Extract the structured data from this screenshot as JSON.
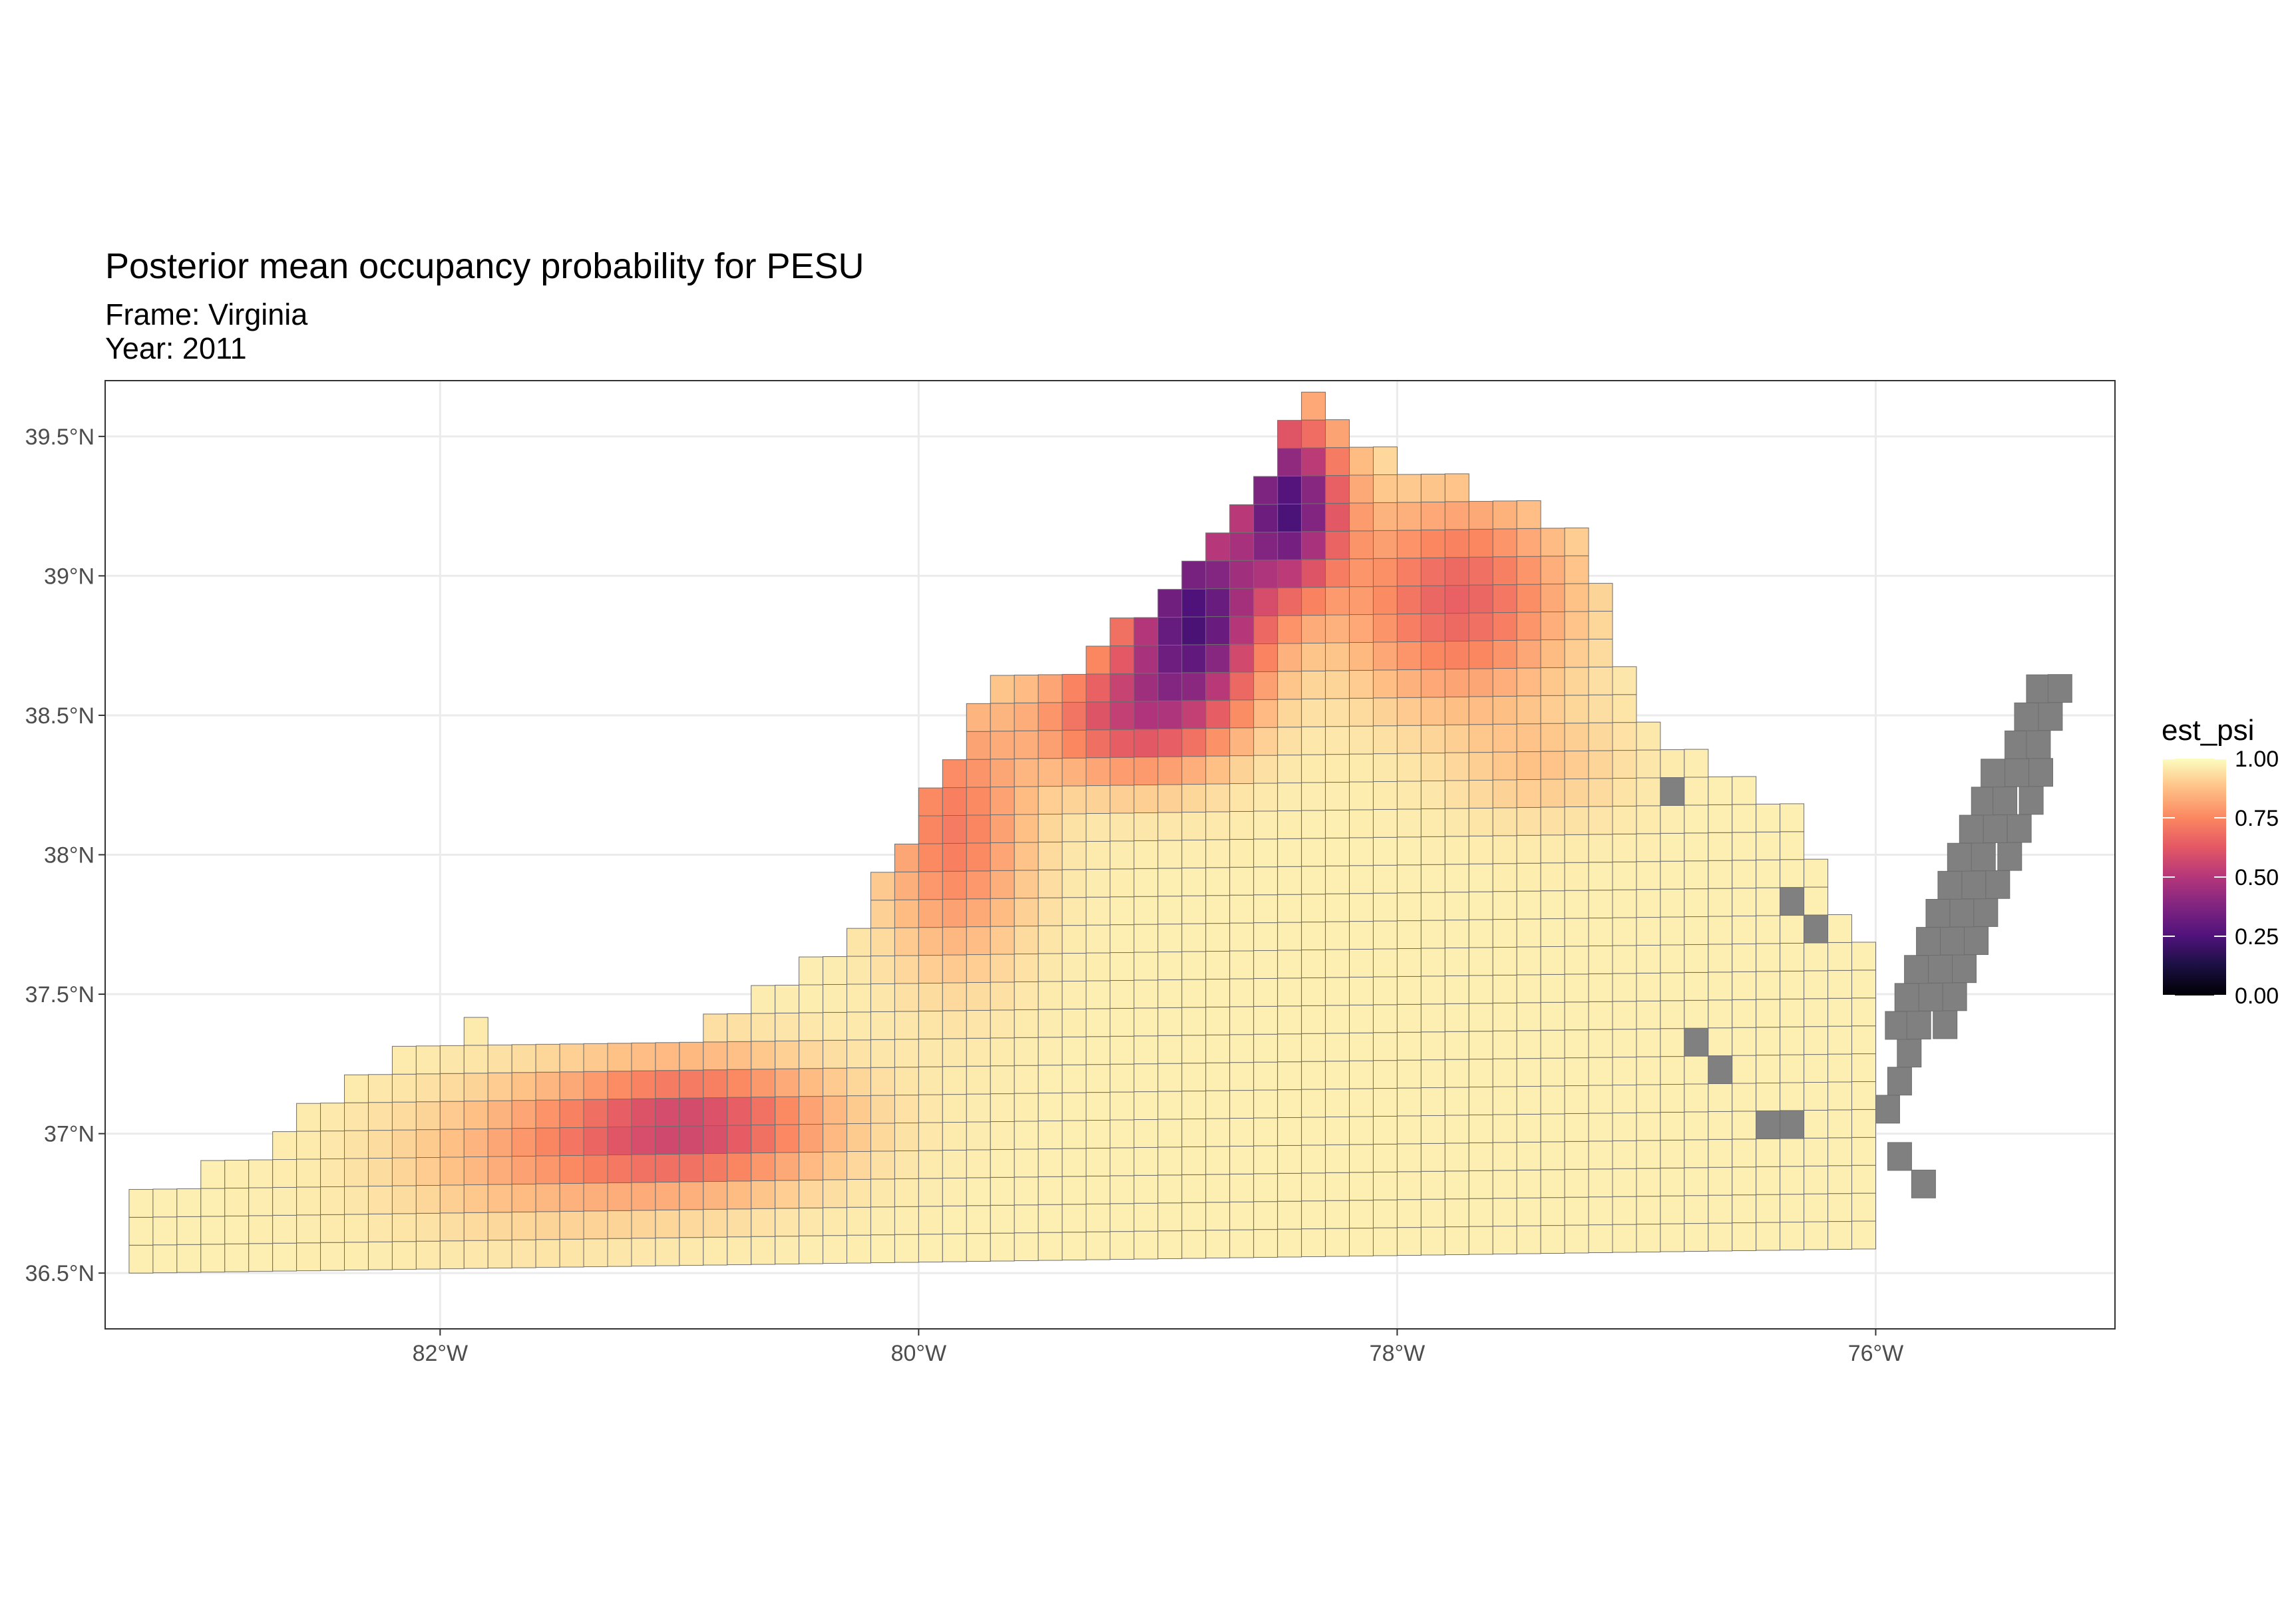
{
  "title": "Posterior mean occupancy probability for PESU",
  "subtitle_frame": "Frame: Virginia",
  "subtitle_year": "Year: 2011",
  "x_ticks": [
    "82°W",
    "80°W",
    "78°W",
    "76°W"
  ],
  "y_ticks": [
    "39.5°N",
    "39°N",
    "38.5°N",
    "38°N",
    "37.5°N",
    "37°N",
    "36.5°N"
  ],
  "legend": {
    "title": "est_psi",
    "labels": [
      "1.00",
      "0.75",
      "0.50",
      "0.25",
      "0.00"
    ]
  },
  "colors": {
    "na_cell": "#808080",
    "cell_border": "#6e6e6e",
    "panel_border": "#333333",
    "grid": "#ebebeb",
    "colormap": "magma"
  },
  "chart_data": {
    "type": "heatmap",
    "fill_variable": "est_psi",
    "scale_range": [
      0,
      1
    ],
    "xlim": [
      -83.4,
      -75.0
    ],
    "ylim": [
      36.3,
      39.7
    ],
    "grid_cell_deg": 0.1,
    "regions": [
      {
        "name": "",
        "lon": [
          -83.2,
          -76.0
        ],
        "lat": [
          36.6,
          38.6
        ],
        "est_psi": 0.98
      },
      {
        "name": "",
        "lon": [
          -81.3,
          -80.4
        ],
        "lat": [
          36.75,
          37.3
        ],
        "est_psi": 0.72
      },
      {
        "name": "",
        "lon": [
          -81.1,
          -80.9
        ],
        "lat": [
          36.9,
          37.1
        ],
        "est_psi": 0.62
      },
      {
        "name": "",
        "lon": [
          -80.2,
          -79.3
        ],
        "lat": [
          37.7,
          38.6
        ],
        "est_psi": 0.78
      },
      {
        "name": "",
        "lon": [
          -79.3,
          -78.6
        ],
        "lat": [
          38.2,
          38.7
        ],
        "est_psi": 0.55
      },
      {
        "name": "",
        "lon": [
          -79.1,
          -78.5
        ],
        "lat": [
          38.3,
          38.9
        ],
        "est_psi": 0.22
      },
      {
        "name": "",
        "lon": [
          -78.7,
          -78.2
        ],
        "lat": [
          38.7,
          39.5
        ],
        "est_psi": 0.25
      },
      {
        "name": "",
        "lon": [
          -78.2,
          -77.1
        ],
        "lat": [
          38.5,
          39.3
        ],
        "est_psi": 0.7
      },
      {
        "name": "",
        "lon": [
          -76.9,
          -75.2
        ],
        "lat": [
          36.6,
          38.0
        ],
        "est_psi": null
      }
    ]
  }
}
